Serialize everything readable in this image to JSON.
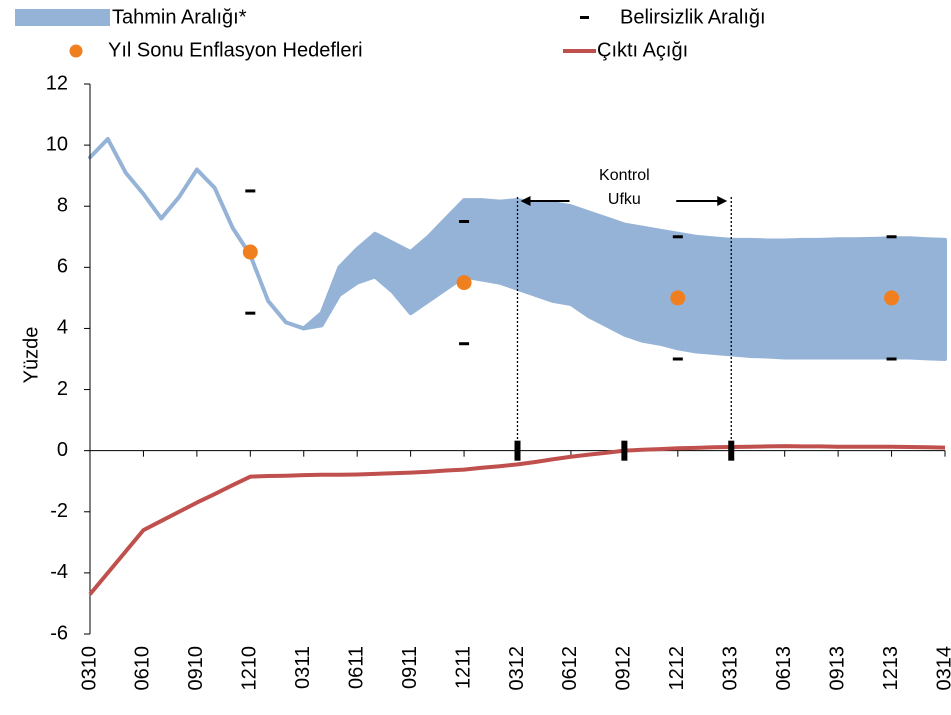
{
  "chart_data": {
    "type": "fan",
    "y_axis_label": "Yüzde",
    "ylim": [
      -6,
      12
    ],
    "yticks": [
      -6,
      -4,
      -2,
      0,
      2,
      4,
      6,
      8,
      10,
      12
    ],
    "categories": [
      "0310",
      null,
      null,
      "0610",
      null,
      null,
      "0910",
      null,
      null,
      "1210",
      null,
      null,
      "0311",
      null,
      null,
      "0611",
      null,
      null,
      "0911",
      null,
      null,
      "1211",
      null,
      null,
      "0312",
      null,
      null,
      "0612",
      null,
      null,
      "0912",
      null,
      null,
      "1212",
      null,
      null,
      "0313",
      null,
      null,
      "0613",
      null,
      null,
      "0913",
      null,
      null,
      "1213",
      null,
      null,
      "0314"
    ],
    "band": {
      "name": "Tahmin Aralığı*",
      "color": "#95b3d7",
      "upper": [
        9.6,
        10.2,
        9.1,
        8.4,
        7.6,
        8.3,
        9.2,
        8.6,
        7.3,
        6.4,
        4.9,
        4.2,
        4.0,
        4.5,
        6.0,
        6.6,
        7.1,
        6.8,
        6.5,
        7.0,
        7.6,
        8.2,
        8.2,
        8.15,
        8.2,
        8.1,
        8.1,
        8.0,
        7.8,
        7.6,
        7.4,
        7.3,
        7.2,
        7.1,
        7.0,
        6.95,
        6.9,
        6.9,
        6.88,
        6.88,
        6.9,
        6.9,
        6.92,
        6.92,
        6.93,
        6.95,
        6.95,
        6.92,
        6.9
      ],
      "lower": [
        9.6,
        10.2,
        9.1,
        8.4,
        7.6,
        8.3,
        9.2,
        8.6,
        7.3,
        6.4,
        4.9,
        4.2,
        4.0,
        4.1,
        5.1,
        5.5,
        5.7,
        5.2,
        4.5,
        4.9,
        5.3,
        5.7,
        5.6,
        5.5,
        5.3,
        5.1,
        4.9,
        4.8,
        4.4,
        4.1,
        3.8,
        3.6,
        3.5,
        3.35,
        3.25,
        3.2,
        3.15,
        3.1,
        3.08,
        3.05,
        3.05,
        3.05,
        3.05,
        3.05,
        3.05,
        3.05,
        3.05,
        3.02,
        3.0
      ]
    },
    "output_gap": {
      "name": "Çıktı Açığı",
      "color": "#c0504d",
      "values": [
        -4.7,
        -4.0,
        -3.3,
        -2.6,
        -2.3,
        -2.0,
        -1.7,
        -1.42,
        -1.13,
        -0.85,
        -0.83,
        -0.82,
        -0.8,
        -0.79,
        -0.79,
        -0.78,
        -0.76,
        -0.74,
        -0.72,
        -0.69,
        -0.65,
        -0.62,
        -0.56,
        -0.51,
        -0.45,
        -0.37,
        -0.28,
        -0.2,
        -0.13,
        -0.07,
        0.0,
        0.03,
        0.05,
        0.08,
        0.09,
        0.11,
        0.12,
        0.13,
        0.14,
        0.15,
        0.14,
        0.14,
        0.13,
        0.13,
        0.13,
        0.13,
        0.12,
        0.11,
        0.1
      ]
    },
    "targets": {
      "name": "Yıl Sonu Enflasyon Hedefleri",
      "color": "#f07f1f",
      "x": [
        "1210",
        "1211",
        "1212",
        "1213"
      ],
      "values": [
        6.5,
        5.5,
        5,
        5
      ]
    },
    "uncertainty": {
      "name": "Belirsizlik Aralığı",
      "color": "#000000",
      "x": [
        "1210",
        "1211",
        "1212",
        "1213"
      ],
      "upper": [
        8.5,
        7.5,
        7,
        7
      ],
      "lower": [
        4.5,
        3.5,
        3,
        3
      ]
    },
    "control_horizon": {
      "text": [
        "Kontrol",
        "Ufku"
      ],
      "start": "0312",
      "end": "0313",
      "top": 8.3
    },
    "zero_markers_x": [
      "0312",
      "0912",
      "0313"
    ]
  }
}
